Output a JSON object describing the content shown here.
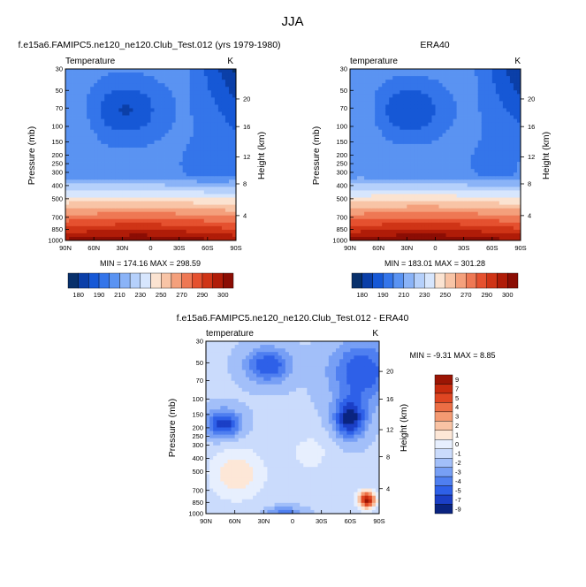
{
  "figure": {
    "title": "JJA"
  },
  "palettes": {
    "temperature": [
      "#08306b",
      "#0b3fa8",
      "#1658d6",
      "#3475ea",
      "#5a93f2",
      "#8ab3f7",
      "#b5d0fb",
      "#d7e6fd",
      "#fbe3d1",
      "#f8c4a6",
      "#f4a07c",
      "#ee7854",
      "#e5512f",
      "#cf3416",
      "#b01c08",
      "#8b0d04"
    ],
    "difference": [
      "#0a2480",
      "#1b3fc6",
      "#2e60e8",
      "#4f7ff0",
      "#779ff5",
      "#a2bff9",
      "#cadbfc",
      "#e7effe",
      "#fde7d7",
      "#f9c3a4",
      "#f49a72",
      "#ec6e45",
      "#df4622",
      "#c72b0e",
      "#9b1504"
    ]
  },
  "chart_data": [
    {
      "type": "heatmap",
      "title": "f.e15a6.FAMIPC5.ne120_ne120.Club_Test.012 (yrs 1979-1980)",
      "left_label": "Temperature",
      "right_label": "K",
      "ylabel": "Pressure (mb)",
      "ylabel_right": "Height (km)",
      "x_ticks": [
        "90N",
        "60N",
        "30N",
        "0",
        "30S",
        "60S",
        "90S"
      ],
      "y_ticks": [
        "30",
        "50",
        "70",
        "100",
        "150",
        "200",
        "250",
        "300",
        "400",
        "500",
        "700",
        "850",
        "1000"
      ],
      "y_ticks_right": [
        "20",
        "16",
        "12",
        "8",
        "4"
      ],
      "ylim": [
        1000,
        30
      ],
      "stats": "MIN = 174.16   MAX = 298.59",
      "colorbar_labels": [
        "180",
        "190",
        "210",
        "230",
        "250",
        "270",
        "290",
        "300"
      ],
      "palette": "temperature",
      "offset": 0
    },
    {
      "type": "heatmap",
      "title": "ERA40",
      "left_label": "temperature",
      "right_label": "K",
      "ylabel": "Pressure (mb)",
      "ylabel_right": "Height (km)",
      "x_ticks": [
        "90N",
        "60N",
        "30N",
        "0",
        "30S",
        "60S",
        "90S"
      ],
      "y_ticks": [
        "30",
        "50",
        "70",
        "100",
        "150",
        "200",
        "250",
        "300",
        "400",
        "500",
        "700",
        "850",
        "1000"
      ],
      "y_ticks_right": [
        "20",
        "16",
        "12",
        "8",
        "4"
      ],
      "ylim": [
        1000,
        30
      ],
      "stats": "MIN = 183.01   MAX = 301.28",
      "colorbar_labels": [
        "180",
        "190",
        "210",
        "230",
        "250",
        "270",
        "290",
        "300"
      ],
      "palette": "temperature",
      "offset": 0.02
    },
    {
      "type": "heatmap",
      "title": "f.e15a6.FAMIPC5.ne120_ne120.Club_Test.012 - ERA40",
      "left_label": "temperature",
      "right_label": "K",
      "ylabel": "Pressure (mb)",
      "ylabel_right": "Height (km)",
      "x_ticks": [
        "90N",
        "60N",
        "30N",
        "0",
        "30S",
        "60S",
        "90S"
      ],
      "y_ticks": [
        "30",
        "50",
        "70",
        "100",
        "150",
        "200",
        "250",
        "300",
        "400",
        "500",
        "700",
        "850",
        "1000"
      ],
      "y_ticks_right": [
        "20",
        "16",
        "12",
        "8",
        "4"
      ],
      "ylim": [
        1000,
        30
      ],
      "stats": "MIN = -9.31   MAX =  8.85",
      "colorbar_labels": [
        "9",
        "7",
        "5",
        "4",
        "3",
        "2",
        "1",
        "0",
        "-1",
        "-2",
        "-3",
        "-4",
        "-5",
        "-7",
        "-9"
      ],
      "palette": "difference"
    }
  ]
}
